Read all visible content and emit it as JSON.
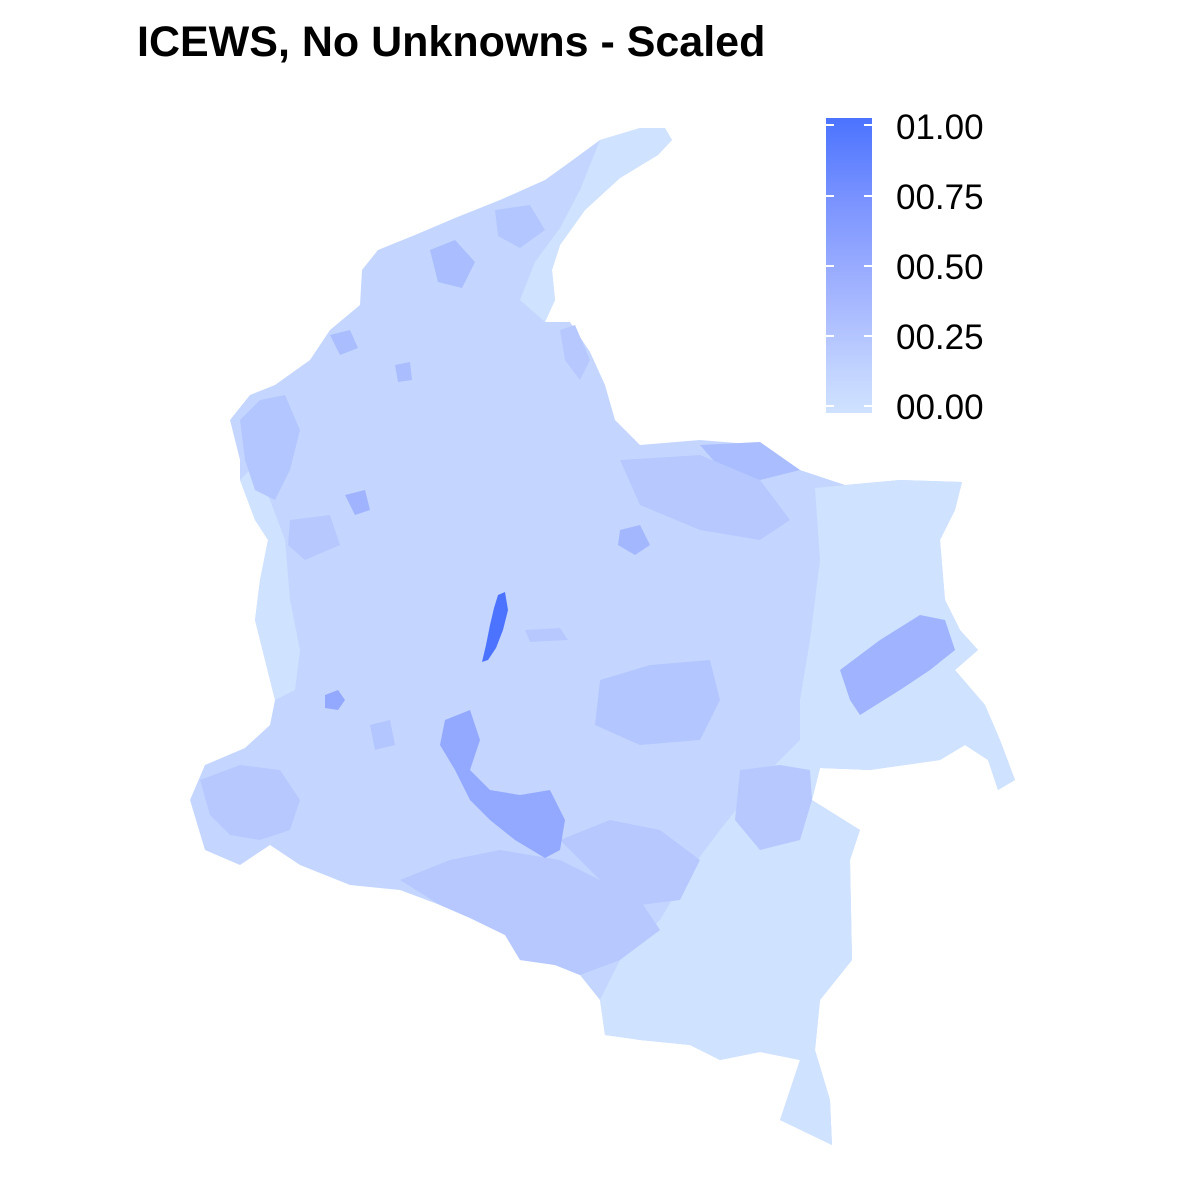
{
  "title": "ICEWS, No Unknowns - Scaled",
  "legend": {
    "labels": [
      "01.00",
      "00.75",
      "00.50",
      "00.25",
      "00.00"
    ],
    "color_high": "#4b73ff",
    "color_low": "#cfe2ff"
  },
  "colors": {
    "base": "#c4d6ff",
    "light": "#cfe2ff",
    "medium": "#a9bdff",
    "strong": "#93a8ff",
    "peak": "#4b73ff"
  }
}
